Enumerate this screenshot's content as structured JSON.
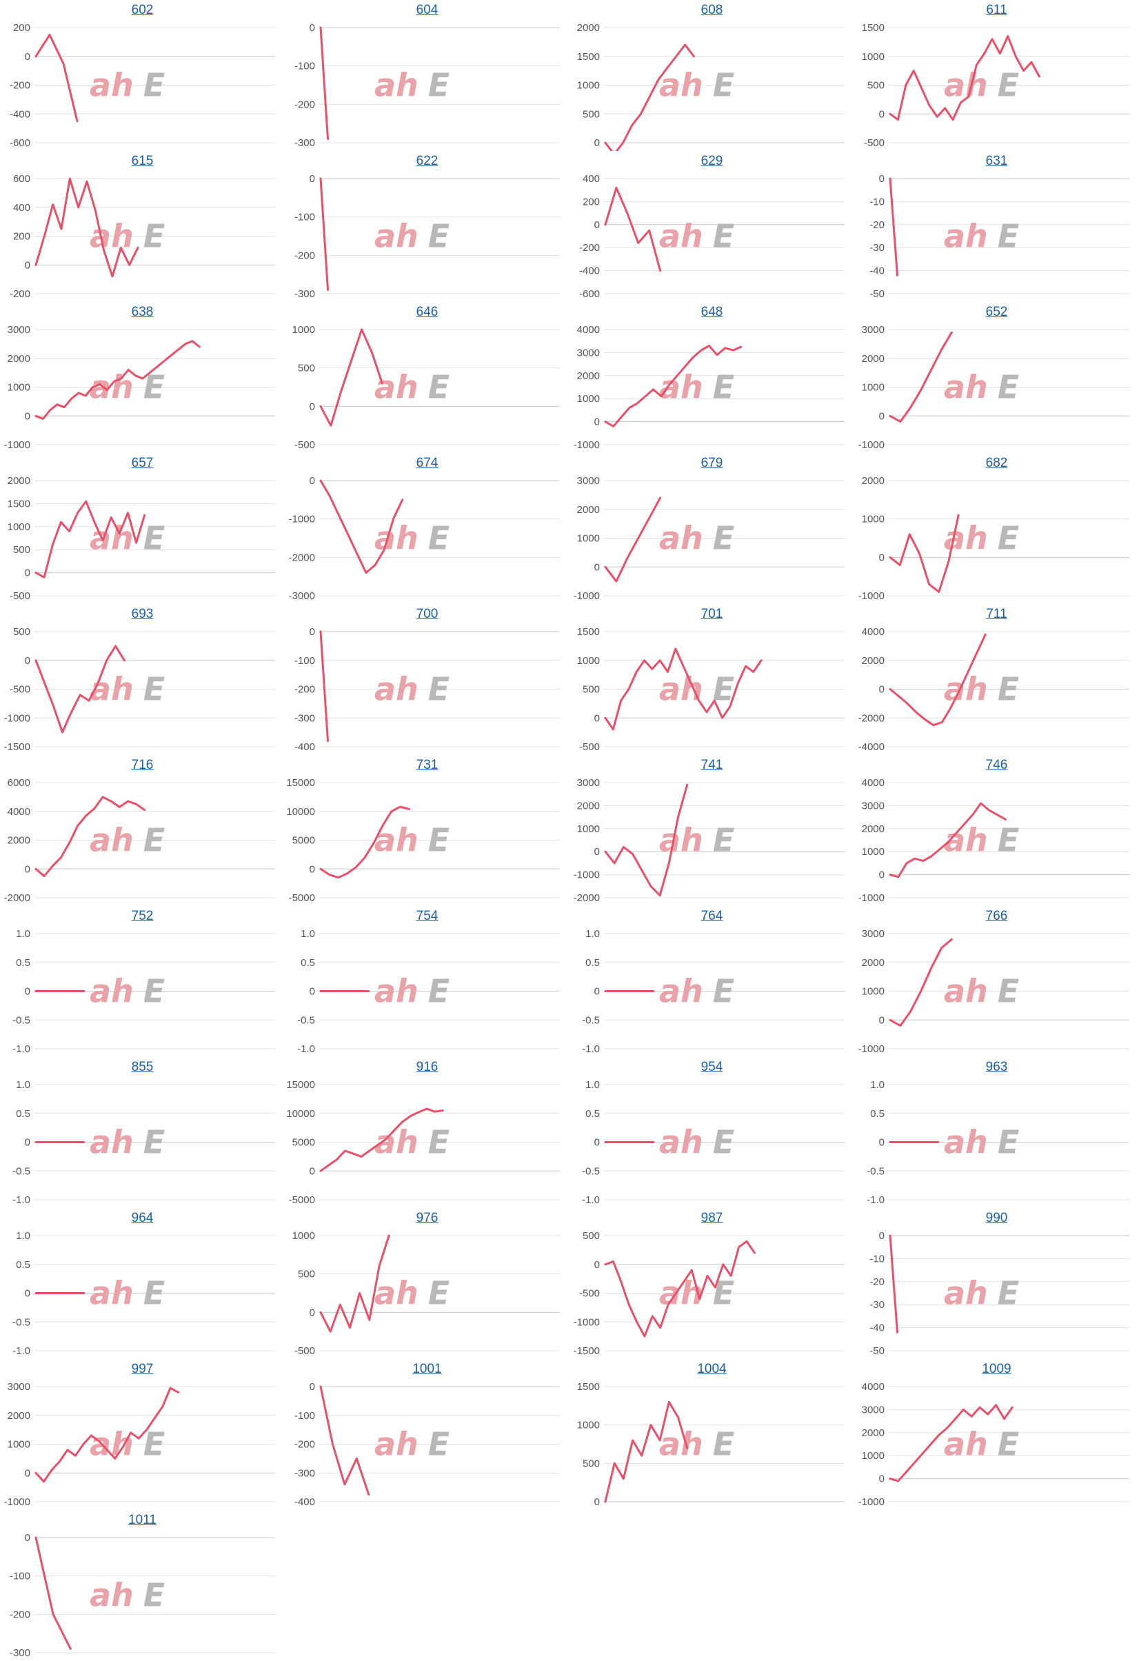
{
  "watermark": {
    "part1": "ah",
    "part2": "E",
    "part1_color": "#e9a3a8",
    "part2_color": "#b8b8b8"
  },
  "colors": {
    "line": "#e8506a",
    "link": "#1a5fa8",
    "grid": "#e0e0e0",
    "axis": "#c8c8c8",
    "tick_text": "#555555"
  },
  "chart_data": [
    {
      "type": "line",
      "title": "602",
      "ylim": [
        -600,
        200
      ],
      "yticks": [
        200,
        0,
        -200,
        -400,
        -600
      ],
      "values": [
        0,
        150,
        -50,
        -450
      ]
    },
    {
      "type": "line",
      "title": "604",
      "ylim": [
        -300,
        0
      ],
      "yticks": [
        0,
        -100,
        -200,
        -300
      ],
      "values": [
        0,
        -290
      ]
    },
    {
      "type": "line",
      "title": "608",
      "ylim": [
        0,
        2000
      ],
      "yticks": [
        2000,
        1500,
        1000,
        500,
        0
      ],
      "values": [
        0,
        -200,
        0,
        300,
        500,
        800,
        1100,
        1300,
        1500,
        1700,
        1500
      ]
    },
    {
      "type": "line",
      "title": "611",
      "ylim": [
        -500,
        1500
      ],
      "yticks": [
        1500,
        1000,
        500,
        0,
        -500
      ],
      "values": [
        0,
        -100,
        500,
        750,
        450,
        150,
        -50,
        100,
        -100,
        200,
        300,
        850,
        1050,
        1300,
        1050,
        1350,
        1000,
        750,
        900,
        650
      ]
    },
    {
      "type": "line",
      "title": "615",
      "ylim": [
        -200,
        600
      ],
      "yticks": [
        600,
        400,
        200,
        0,
        -200
      ],
      "values": [
        0,
        200,
        420,
        250,
        600,
        400,
        580,
        380,
        100,
        -80,
        120,
        0,
        120
      ]
    },
    {
      "type": "line",
      "title": "622",
      "ylim": [
        -300,
        0
      ],
      "yticks": [
        0,
        -100,
        -200,
        -300
      ],
      "values": [
        0,
        -290
      ]
    },
    {
      "type": "line",
      "title": "629",
      "ylim": [
        -600,
        400
      ],
      "yticks": [
        400,
        200,
        0,
        -200,
        -400,
        -600
      ],
      "values": [
        0,
        320,
        100,
        -160,
        -50,
        -400
      ]
    },
    {
      "type": "line",
      "title": "631",
      "ylim": [
        -50,
        0
      ],
      "yticks": [
        0,
        -10,
        -20,
        -30,
        -40,
        -50
      ],
      "values": [
        0,
        -42
      ]
    },
    {
      "type": "line",
      "title": "638",
      "ylim": [
        -1000,
        3000
      ],
      "yticks": [
        3000,
        2000,
        1000,
        0,
        -1000
      ],
      "values": [
        0,
        -100,
        200,
        400,
        300,
        600,
        800,
        700,
        1000,
        1100,
        900,
        1200,
        1300,
        1600,
        1400,
        1300,
        1500,
        1700,
        1900,
        2100,
        2300,
        2500,
        2600,
        2400
      ]
    },
    {
      "type": "line",
      "title": "646",
      "ylim": [
        -500,
        1000
      ],
      "yticks": [
        1000,
        500,
        0,
        -500
      ],
      "values": [
        0,
        -250,
        200,
        600,
        1000,
        700,
        300
      ]
    },
    {
      "type": "line",
      "title": "648",
      "ylim": [
        -1000,
        4000
      ],
      "yticks": [
        4000,
        3000,
        2000,
        1000,
        0,
        -1000
      ],
      "values": [
        0,
        -200,
        200,
        600,
        800,
        1100,
        1400,
        1100,
        1600,
        2000,
        2400,
        2800,
        3100,
        3300,
        2900,
        3200,
        3100,
        3250
      ]
    },
    {
      "type": "line",
      "title": "652",
      "ylim": [
        -1000,
        3000
      ],
      "yticks": [
        3000,
        2000,
        1000,
        0,
        -1000
      ],
      "values": [
        0,
        -200,
        300,
        900,
        1600,
        2300,
        2900
      ]
    },
    {
      "type": "line",
      "title": "657",
      "ylim": [
        -500,
        2000
      ],
      "yticks": [
        2000,
        1500,
        1000,
        500,
        0,
        -500
      ],
      "values": [
        0,
        -100,
        600,
        1100,
        900,
        1300,
        1550,
        1100,
        700,
        1200,
        850,
        1300,
        650,
        1250
      ]
    },
    {
      "type": "line",
      "title": "674",
      "ylim": [
        -3000,
        0
      ],
      "yticks": [
        0,
        -1000,
        -2000,
        -3000
      ],
      "values": [
        0,
        -400,
        -900,
        -1400,
        -1900,
        -2400,
        -2200,
        -1800,
        -1000,
        -500
      ]
    },
    {
      "type": "line",
      "title": "679",
      "ylim": [
        -1000,
        3000
      ],
      "yticks": [
        3000,
        2000,
        1000,
        0,
        -1000
      ],
      "values": [
        0,
        -500,
        300,
        1000,
        1700,
        2400
      ]
    },
    {
      "type": "line",
      "title": "682",
      "ylim": [
        -1000,
        2000
      ],
      "yticks": [
        2000,
        1000,
        0,
        -1000
      ],
      "values": [
        0,
        -200,
        600,
        100,
        -700,
        -900,
        -100,
        1100
      ]
    },
    {
      "type": "line",
      "title": "693",
      "ylim": [
        -1500,
        500
      ],
      "yticks": [
        500,
        0,
        -500,
        -1000,
        -1500
      ],
      "values": [
        0,
        -400,
        -800,
        -1250,
        -900,
        -600,
        -700,
        -400,
        0,
        250,
        0
      ]
    },
    {
      "type": "line",
      "title": "700",
      "ylim": [
        -400,
        0
      ],
      "yticks": [
        0,
        -100,
        -200,
        -300,
        -400
      ],
      "values": [
        0,
        -380
      ]
    },
    {
      "type": "line",
      "title": "701",
      "ylim": [
        -500,
        1500
      ],
      "yticks": [
        1500,
        1000,
        500,
        0,
        -500
      ],
      "values": [
        0,
        -200,
        300,
        500,
        800,
        1000,
        850,
        1000,
        800,
        1200,
        900,
        600,
        300,
        100,
        300,
        0,
        200,
        600,
        900,
        800,
        1000
      ]
    },
    {
      "type": "line",
      "title": "711",
      "ylim": [
        -4000,
        4000
      ],
      "yticks": [
        4000,
        2000,
        0,
        -2000,
        -4000
      ],
      "values": [
        0,
        -500,
        -1000,
        -1600,
        -2100,
        -2500,
        -2300,
        -1300,
        -100,
        1200,
        2500,
        3800
      ]
    },
    {
      "type": "line",
      "title": "716",
      "ylim": [
        -2000,
        6000
      ],
      "yticks": [
        6000,
        4000,
        2000,
        0,
        -2000
      ],
      "values": [
        0,
        -500,
        200,
        800,
        1800,
        3000,
        3700,
        4200,
        5000,
        4700,
        4300,
        4700,
        4500,
        4100
      ]
    },
    {
      "type": "line",
      "title": "731",
      "ylim": [
        -5000,
        15000
      ],
      "yticks": [
        15000,
        10000,
        5000,
        0,
        -5000
      ],
      "values": [
        0,
        -1000,
        -1500,
        -800,
        300,
        2000,
        4500,
        7500,
        10000,
        10800,
        10400
      ]
    },
    {
      "type": "line",
      "title": "741",
      "ylim": [
        -2000,
        3000
      ],
      "yticks": [
        3000,
        2000,
        1000,
        0,
        -1000,
        -2000
      ],
      "values": [
        0,
        -500,
        200,
        -100,
        -800,
        -1500,
        -1900,
        -500,
        1500,
        2900
      ]
    },
    {
      "type": "line",
      "title": "746",
      "ylim": [
        -1000,
        4000
      ],
      "yticks": [
        4000,
        3000,
        2000,
        1000,
        0,
        -1000
      ],
      "values": [
        0,
        -100,
        500,
        700,
        600,
        800,
        1100,
        1400,
        1800,
        2200,
        2600,
        3100,
        2800,
        2600,
        2400
      ]
    },
    {
      "type": "line",
      "title": "752",
      "ylim": [
        -1.0,
        1.0
      ],
      "yticks": [
        "1.0",
        "0.5",
        "0",
        "-0.5",
        "-1.0"
      ],
      "values": [
        0,
        0,
        0,
        0,
        0
      ]
    },
    {
      "type": "line",
      "title": "754",
      "ylim": [
        -1.0,
        1.0
      ],
      "yticks": [
        "1.0",
        "0.5",
        "0",
        "-0.5",
        "-1.0"
      ],
      "values": [
        0,
        0,
        0,
        0,
        0
      ]
    },
    {
      "type": "line",
      "title": "764",
      "ylim": [
        -1.0,
        1.0
      ],
      "yticks": [
        "1.0",
        "0.5",
        "0",
        "-0.5",
        "-1.0"
      ],
      "values": [
        0,
        0,
        0,
        0,
        0
      ]
    },
    {
      "type": "line",
      "title": "766",
      "ylim": [
        -1000,
        3000
      ],
      "yticks": [
        3000,
        2000,
        1000,
        0,
        -1000
      ],
      "values": [
        0,
        -200,
        300,
        1000,
        1800,
        2500,
        2800
      ]
    },
    {
      "type": "line",
      "title": "855",
      "ylim": [
        -1.0,
        1.0
      ],
      "yticks": [
        "1.0",
        "0.5",
        "0",
        "-0.5",
        "-1.0"
      ],
      "values": [
        0,
        0,
        0,
        0,
        0
      ]
    },
    {
      "type": "line",
      "title": "916",
      "ylim": [
        -5000,
        15000
      ],
      "yticks": [
        15000,
        10000,
        5000,
        0,
        -5000
      ],
      "values": [
        0,
        1000,
        2000,
        3500,
        3000,
        2500,
        3500,
        4500,
        5500,
        7000,
        8500,
        9500,
        10200,
        10800,
        10300,
        10500
      ]
    },
    {
      "type": "line",
      "title": "954",
      "ylim": [
        -1.0,
        1.0
      ],
      "yticks": [
        "1.0",
        "0.5",
        "0",
        "-0.5",
        "-1.0"
      ],
      "values": [
        0,
        0,
        0,
        0,
        0
      ]
    },
    {
      "type": "line",
      "title": "963",
      "ylim": [
        -1.0,
        1.0
      ],
      "yticks": [
        "1.0",
        "0.5",
        "0",
        "-0.5",
        "-1.0"
      ],
      "values": [
        0,
        0,
        0,
        0,
        0
      ]
    },
    {
      "type": "line",
      "title": "964",
      "ylim": [
        -1.0,
        1.0
      ],
      "yticks": [
        "1.0",
        "0.5",
        "0",
        "-0.5",
        "-1.0"
      ],
      "values": [
        0,
        0,
        0,
        0,
        0
      ]
    },
    {
      "type": "line",
      "title": "976",
      "ylim": [
        -500,
        1000
      ],
      "yticks": [
        1000,
        500,
        0,
        -500
      ],
      "values": [
        0,
        -250,
        100,
        -200,
        250,
        -100,
        600,
        1000
      ]
    },
    {
      "type": "line",
      "title": "987",
      "ylim": [
        -1500,
        500
      ],
      "yticks": [
        500,
        0,
        -500,
        -1000,
        -1500
      ],
      "values": [
        0,
        50,
        -300,
        -700,
        -1000,
        -1250,
        -900,
        -1100,
        -700,
        -500,
        -300,
        -100,
        -600,
        -200,
        -400,
        0,
        -200,
        300,
        400,
        200
      ]
    },
    {
      "type": "line",
      "title": "990",
      "ylim": [
        -50,
        0
      ],
      "yticks": [
        0,
        -10,
        -20,
        -30,
        -40,
        -50
      ],
      "values": [
        0,
        -42
      ]
    },
    {
      "type": "line",
      "title": "997",
      "ylim": [
        -1000,
        3000
      ],
      "yticks": [
        3000,
        2000,
        1000,
        0,
        -1000
      ],
      "values": [
        0,
        -300,
        100,
        400,
        800,
        600,
        1000,
        1300,
        1100,
        800,
        500,
        900,
        1400,
        1200,
        1500,
        1900,
        2300,
        2950,
        2800
      ]
    },
    {
      "type": "line",
      "title": "1001",
      "ylim": [
        -400,
        0
      ],
      "yticks": [
        0,
        -100,
        -200,
        -300,
        -400
      ],
      "values": [
        0,
        -200,
        -340,
        -250,
        -375
      ]
    },
    {
      "type": "line",
      "title": "1004",
      "ylim": [
        0,
        1500
      ],
      "yticks": [
        1500,
        1000,
        500,
        0
      ],
      "values": [
        0,
        500,
        300,
        800,
        600,
        1000,
        800,
        1300,
        1100,
        700
      ]
    },
    {
      "type": "line",
      "title": "1009",
      "ylim": [
        -1000,
        4000
      ],
      "yticks": [
        4000,
        3000,
        2000,
        1000,
        0,
        -1000
      ],
      "values": [
        0,
        -100,
        300,
        700,
        1100,
        1500,
        1900,
        2200,
        2600,
        3000,
        2700,
        3100,
        2800,
        3200,
        2600,
        3100
      ]
    },
    {
      "type": "line",
      "title": "1011",
      "ylim": [
        -300,
        0
      ],
      "yticks": [
        0,
        -100,
        -200,
        -300
      ],
      "values": [
        0,
        -200,
        -290
      ]
    }
  ]
}
